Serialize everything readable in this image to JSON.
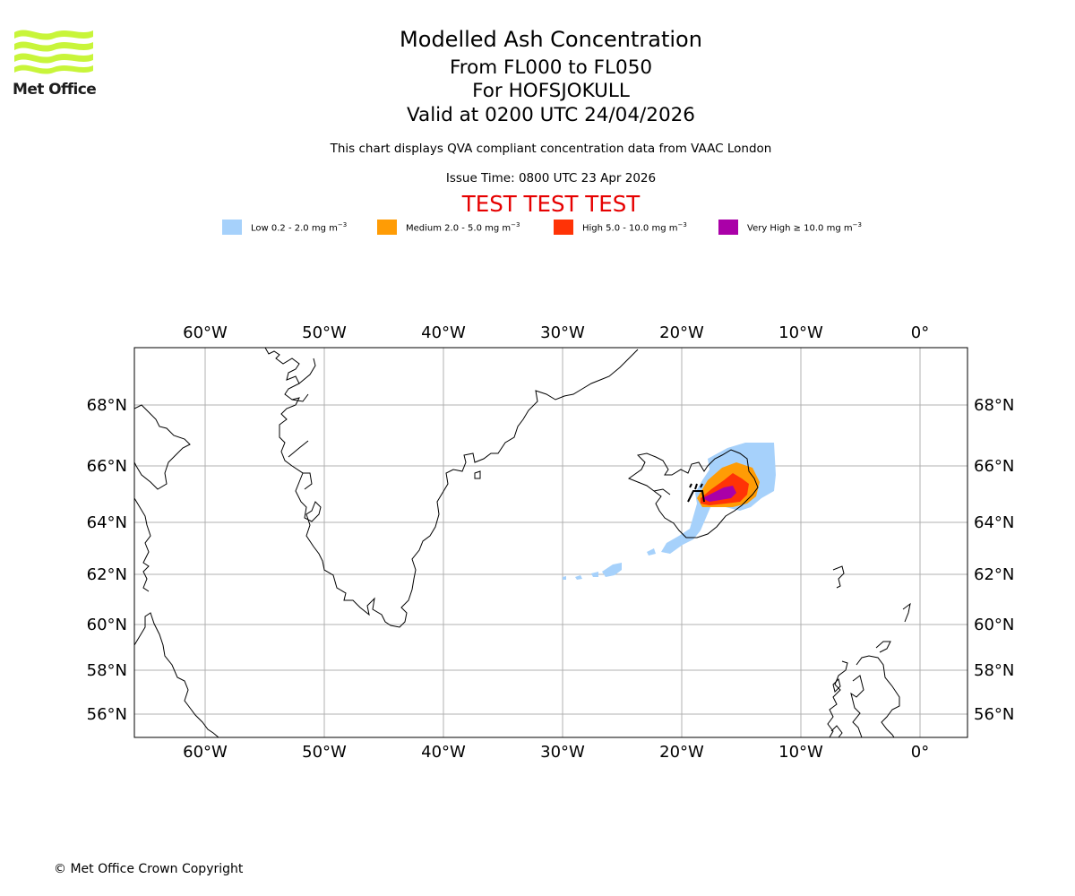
{
  "logo": {
    "name": "Met Office"
  },
  "titles": {
    "main": "Modelled Ash Concentration",
    "levels": "From FL000 to FL050",
    "volcano": "For HOFSJOKULL",
    "valid": "Valid at 0200 UTC 24/04/2026",
    "compliance": "This chart displays QVA compliant concentration data from VAAC London",
    "issue_time": "Issue Time: 0800 UTC 23 Apr 2026",
    "test_banner": "TEST TEST TEST"
  },
  "legend": [
    {
      "label": "Low 0.2 - 2.0 mg m",
      "unit_exp": "−3",
      "color": "#a6d1fb"
    },
    {
      "label": "Medium 2.0 - 5.0 mg m",
      "unit_exp": "−3",
      "color": "#ff9c05"
    },
    {
      "label": "High 5.0 - 10.0 mg m",
      "unit_exp": "−3",
      "color": "#ff3306"
    },
    {
      "label": "Very High  ≥  10.0 mg m",
      "unit_exp": "−3",
      "color": "#aa00a8"
    }
  ],
  "map": {
    "lon_range": [
      -66,
      4
    ],
    "lat_range": [
      55,
      70
    ],
    "lon_ticks": [
      "60°W",
      "50°W",
      "40°W",
      "30°W",
      "20°W",
      "10°W",
      "0°"
    ],
    "lat_ticks": [
      "68°N",
      "66°N",
      "64°N",
      "62°N",
      "60°N",
      "58°N",
      "56°N"
    ],
    "volcano_marker": "volcano-symbol",
    "colors": {
      "grid": "#b0b0b0",
      "coast": "#000000",
      "frame": "#000000"
    }
  },
  "copyright": "© Met Office Crown Copyright"
}
